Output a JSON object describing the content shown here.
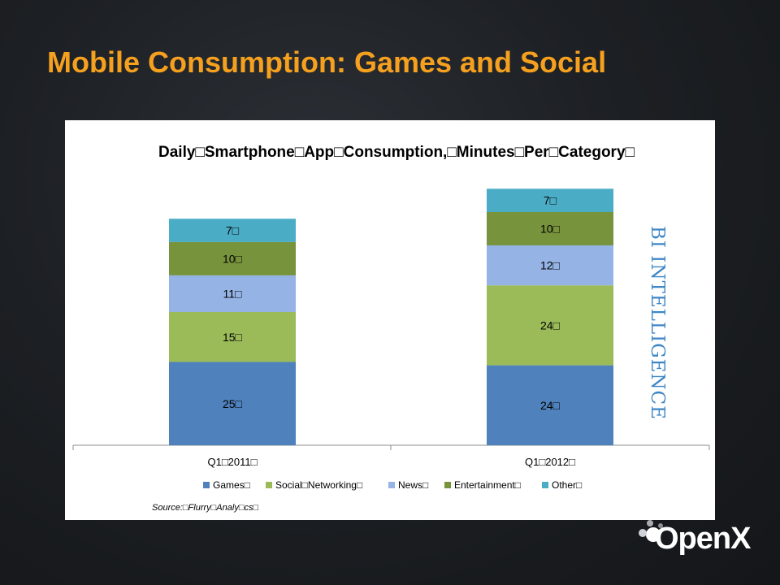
{
  "slide": {
    "title": "Mobile Consumption: Games and Social",
    "title_color": "#f5a01e"
  },
  "watermark": {
    "text": "BI INTELLIGENCE",
    "color": "#3e86c6"
  },
  "logo": {
    "text": "OpenX"
  },
  "chart_data": {
    "type": "bar",
    "stacked": true,
    "title": "Daily□Smartphone□App□Consumption,□Minutes□Per□Category□",
    "categories": [
      "Q1□2011□",
      "Q1□2012□"
    ],
    "series": [
      {
        "name": "Games□",
        "values": [
          25,
          24
        ],
        "labels": [
          "25□",
          "24□"
        ],
        "color": "#4f81bd"
      },
      {
        "name": "Social□Networking□",
        "values": [
          15,
          24
        ],
        "labels": [
          "15□",
          "24□"
        ],
        "color": "#9bbb59"
      },
      {
        "name": "News□",
        "values": [
          11,
          12
        ],
        "labels": [
          "11□",
          "12□"
        ],
        "color": "#95b3e5"
      },
      {
        "name": "Entertainment□",
        "values": [
          10,
          10
        ],
        "labels": [
          "10□",
          "10□"
        ],
        "color": "#77933c"
      },
      {
        "name": "Other□",
        "values": [
          7,
          7
        ],
        "labels": [
          "7□",
          "7□"
        ],
        "color": "#4bacc6"
      }
    ],
    "xlabel": "",
    "ylabel": "",
    "ylim": [
      0,
      80
    ],
    "grid": false,
    "legend": "bottom",
    "source": "Source:□Flurry□Analy□cs□"
  }
}
